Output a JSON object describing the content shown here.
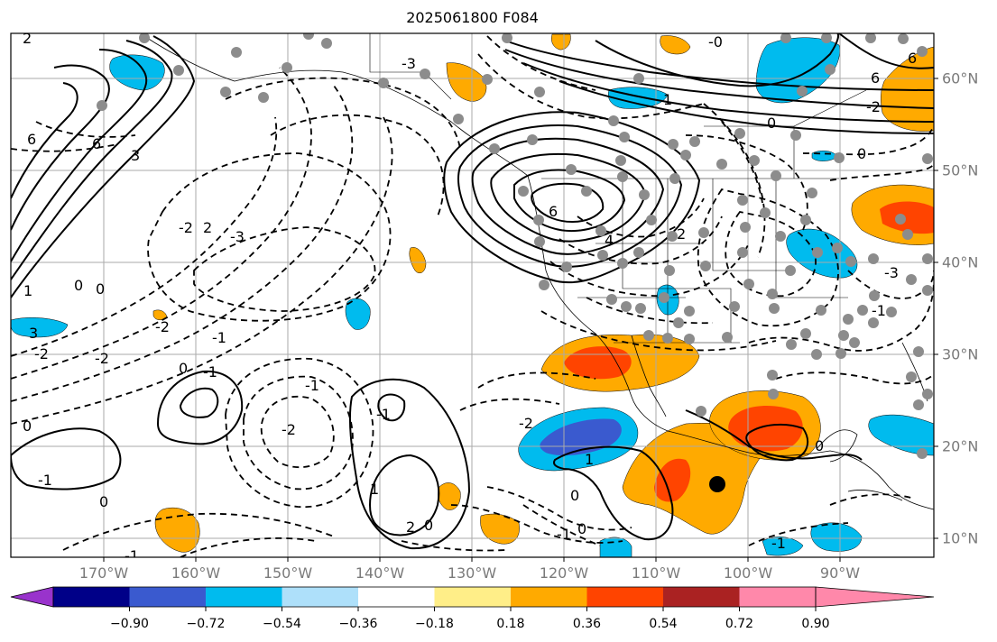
{
  "title": "2025061800 F084",
  "lon_labels": [
    "170°W",
    "160°W",
    "150°W",
    "140°W",
    "130°W",
    "120°W",
    "110°W",
    "100°W",
    "90°W"
  ],
  "lat_labels": [
    "60°N",
    "50°N",
    "40°N",
    "30°N",
    "20°N",
    "10°N"
  ],
  "colorbar": {
    "tick_labels": [
      "−0.90",
      "−0.72",
      "−0.54",
      "−0.36",
      "−0.18",
      "0.18",
      "0.36",
      "0.54",
      "0.72",
      "0.90"
    ],
    "colors": [
      "#9933cc",
      "#000088",
      "#3a5acf",
      "#00bbee",
      "#aee0fa",
      "#ffffff",
      "#ffee88",
      "#ffaa00",
      "#ff4400",
      "#aa2222",
      "#ff88aa"
    ],
    "extend": "both"
  },
  "contour_labels": [
    "6",
    "6",
    "3",
    "2",
    "1",
    "0",
    "0",
    "0",
    "-1",
    "-1",
    "-2",
    "-2",
    "-2",
    "-3",
    "3",
    "-3",
    "4",
    "6",
    "-2",
    "2",
    "0",
    "-1",
    "-1",
    "-1",
    "0",
    "0",
    "-1",
    "1",
    "2",
    "-2",
    "1",
    "0",
    "-1",
    "-2",
    "2",
    "0",
    "6",
    "6",
    "-2",
    "0",
    "-3",
    "-1",
    "1",
    "-0",
    "0",
    "-1",
    "0"
  ],
  "marker": "black-dot"
}
